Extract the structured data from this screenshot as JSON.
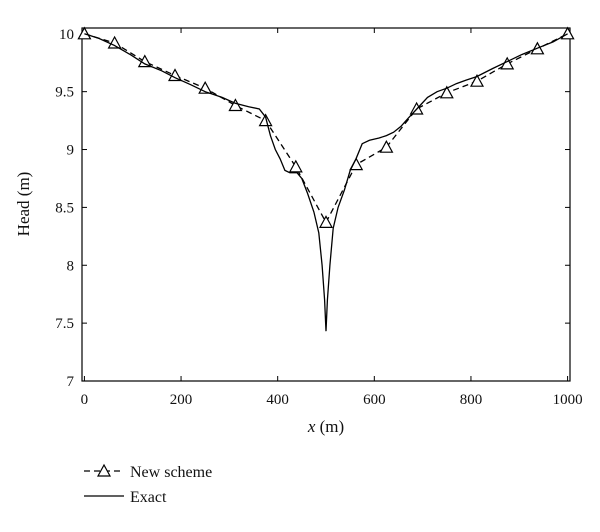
{
  "chart_data": {
    "type": "line",
    "title": "",
    "xlabel_var": "x",
    "xlabel_unit": " (m)",
    "ylabel": "Head (m)",
    "xlim": [
      -5,
      1005
    ],
    "ylim": [
      7,
      10.05
    ],
    "x_ticks": [
      0,
      200,
      400,
      600,
      800,
      1000
    ],
    "x_tick_labels": [
      "0",
      "200",
      "400",
      "600",
      "800",
      "1000"
    ],
    "y_ticks": [
      7,
      7.5,
      8,
      8.5,
      9,
      9.5,
      10
    ],
    "y_tick_labels": [
      "7",
      "7.5",
      "8",
      "8.5",
      "9",
      "9.5",
      "10"
    ],
    "grid": false,
    "legend_position": "bottom-left-outside",
    "series": [
      {
        "name": "New scheme",
        "style": "dashed",
        "marker": "triangle",
        "x": [
          0,
          62.5,
          125,
          187.5,
          250,
          312.5,
          375,
          437.5,
          500,
          562.5,
          625,
          687.5,
          750,
          812.5,
          875,
          937.5,
          1000
        ],
        "y": [
          10.0,
          9.92,
          9.76,
          9.64,
          9.53,
          9.38,
          9.25,
          8.85,
          8.37,
          8.87,
          9.02,
          9.35,
          9.49,
          9.59,
          9.74,
          9.87,
          10.0
        ]
      },
      {
        "name": "Exact",
        "style": "solid",
        "marker": "none",
        "x": [
          0,
          30,
          62,
          95,
          125,
          160,
          188,
          220,
          250,
          285,
          312,
          340,
          362,
          375,
          385,
          395,
          405,
          415,
          425,
          440,
          450,
          462,
          475,
          485,
          492,
          497,
          500,
          503,
          508,
          515,
          525,
          538,
          550,
          562,
          575,
          590,
          610,
          625,
          640,
          655,
          670,
          688,
          710,
          730,
          750,
          770,
          790,
          812,
          845,
          875,
          905,
          940,
          970,
          1000
        ],
        "y": [
          10.0,
          9.96,
          9.9,
          9.82,
          9.74,
          9.68,
          9.62,
          9.56,
          9.5,
          9.45,
          9.4,
          9.37,
          9.35,
          9.28,
          9.12,
          9.0,
          8.92,
          8.82,
          8.8,
          8.8,
          8.75,
          8.62,
          8.46,
          8.28,
          8.0,
          7.7,
          7.43,
          7.7,
          8.0,
          8.32,
          8.5,
          8.65,
          8.82,
          8.92,
          9.05,
          9.08,
          9.1,
          9.12,
          9.15,
          9.2,
          9.27,
          9.35,
          9.45,
          9.5,
          9.53,
          9.57,
          9.6,
          9.63,
          9.7,
          9.76,
          9.82,
          9.88,
          9.93,
          10.0
        ]
      }
    ]
  }
}
